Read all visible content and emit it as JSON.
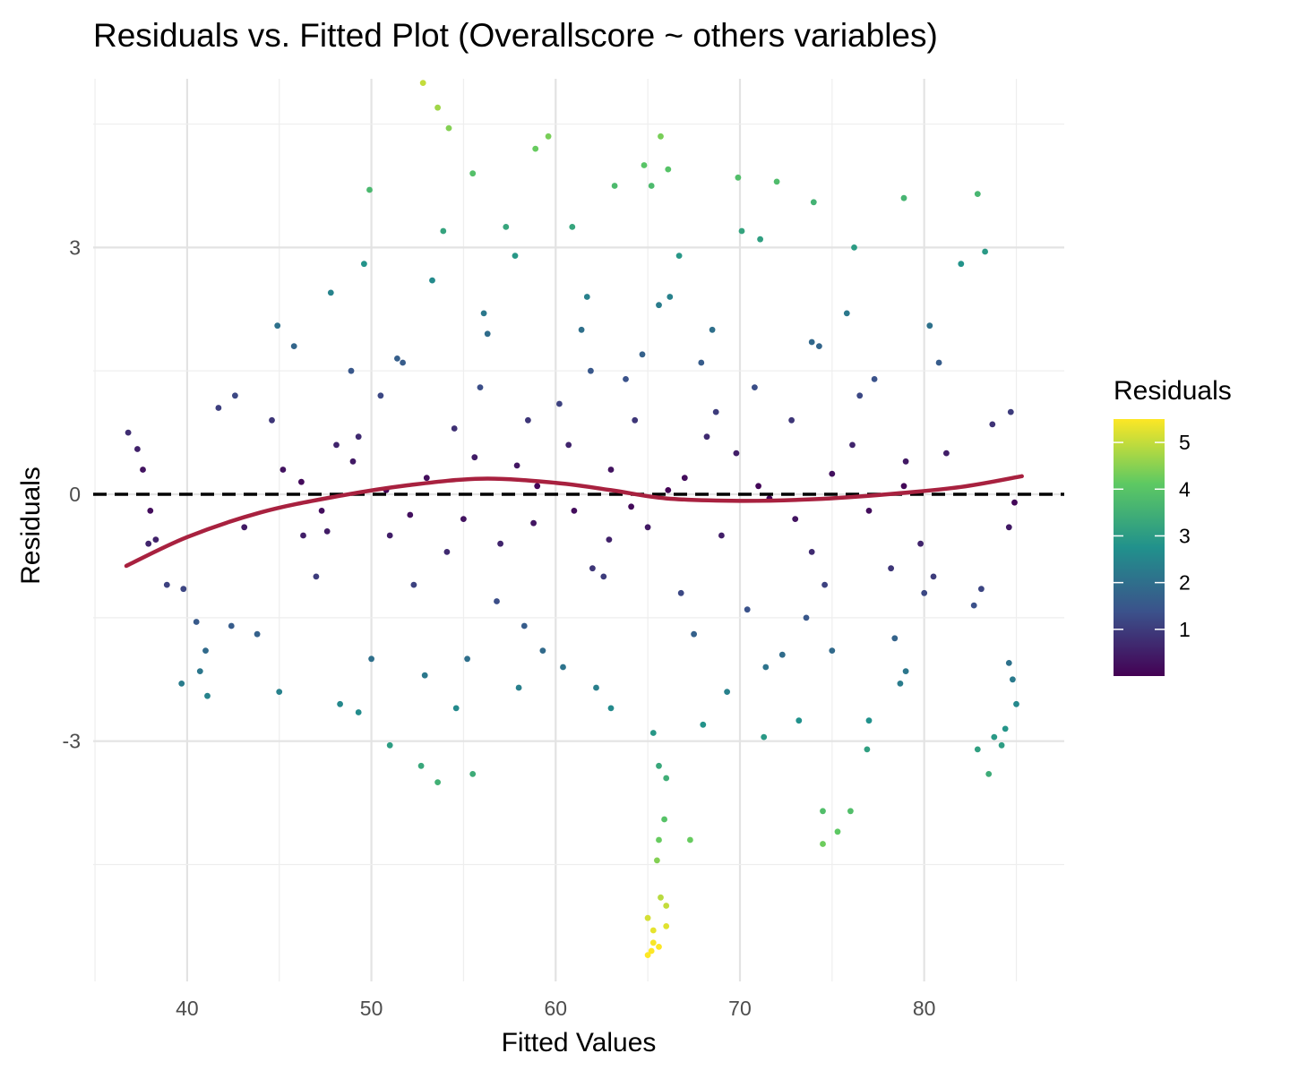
{
  "chart_data": {
    "type": "scatter",
    "title": "Residuals vs. Fitted Plot (Overallscore ~ others variables)",
    "xlabel": "Fitted Values",
    "ylabel": "Residuals",
    "xlim": [
      34.9,
      87.6
    ],
    "ylim": [
      -5.92,
      5.05
    ],
    "x_ticks": [
      40,
      50,
      60,
      70,
      80
    ],
    "x_tick_labels": [
      "40",
      "50",
      "60",
      "70",
      "80"
    ],
    "y_ticks": [
      -3,
      0,
      3
    ],
    "y_tick_labels": [
      "-3",
      "0",
      "3"
    ],
    "grid": true,
    "reference_line": {
      "y": 0,
      "style": "dashed",
      "color": "#000000"
    },
    "smooth": {
      "color": "#a8213f",
      "x": [
        36.7,
        40,
        44,
        48,
        52,
        56,
        60,
        63,
        66,
        70,
        74,
        78,
        82,
        85.3
      ],
      "y": [
        -0.87,
        -0.52,
        -0.22,
        -0.03,
        0.11,
        0.19,
        0.14,
        0.05,
        -0.05,
        -0.08,
        -0.06,
        0.0,
        0.09,
        0.22
      ]
    },
    "color_scale": {
      "name": "Residuals",
      "palette": [
        "#440154",
        "#3b528b",
        "#21918c",
        "#5ec962",
        "#fde725"
      ],
      "range": [
        0,
        5.5
      ],
      "ticks": [
        1,
        2,
        3,
        4,
        5
      ],
      "tick_labels": [
        "1",
        "2",
        "3",
        "4",
        "5"
      ]
    },
    "legend_position": "right",
    "points": [
      [
        52.8,
        5.0
      ],
      [
        53.6,
        4.7
      ],
      [
        54.2,
        4.45
      ],
      [
        58.9,
        4.2
      ],
      [
        59.6,
        4.35
      ],
      [
        65.7,
        4.35
      ],
      [
        66.1,
        3.95
      ],
      [
        64.8,
        4.0
      ],
      [
        72.0,
        3.8
      ],
      [
        69.9,
        3.85
      ],
      [
        55.5,
        3.9
      ],
      [
        49.9,
        3.7
      ],
      [
        74.0,
        3.55
      ],
      [
        78.9,
        3.6
      ],
      [
        82.9,
        3.65
      ],
      [
        63.2,
        3.75
      ],
      [
        65.2,
        3.75
      ],
      [
        57.3,
        3.25
      ],
      [
        60.9,
        3.25
      ],
      [
        53.9,
        3.2
      ],
      [
        76.2,
        3.0
      ],
      [
        83.3,
        2.95
      ],
      [
        71.1,
        3.1
      ],
      [
        66.7,
        2.9
      ],
      [
        82.0,
        2.8
      ],
      [
        47.8,
        2.45
      ],
      [
        61.7,
        2.4
      ],
      [
        65.6,
        2.3
      ],
      [
        80.3,
        2.05
      ],
      [
        68.5,
        2.0
      ],
      [
        44.9,
        2.05
      ],
      [
        56.3,
        1.95
      ],
      [
        73.9,
        1.85
      ],
      [
        45.8,
        1.8
      ],
      [
        64.7,
        1.7
      ],
      [
        51.4,
        1.65
      ],
      [
        41.7,
        1.05
      ],
      [
        42.6,
        1.2
      ],
      [
        83.7,
        0.85
      ],
      [
        84.7,
        1.0
      ],
      [
        36.8,
        0.75
      ],
      [
        37.3,
        0.55
      ],
      [
        37.6,
        0.3
      ],
      [
        38.0,
        -0.2
      ],
      [
        38.3,
        -0.55
      ],
      [
        37.9,
        -0.6
      ],
      [
        38.9,
        -1.1
      ],
      [
        39.8,
        -1.15
      ],
      [
        40.5,
        -1.55
      ],
      [
        41.0,
        -1.9
      ],
      [
        40.7,
        -2.15
      ],
      [
        41.1,
        -2.45
      ],
      [
        39.7,
        -2.3
      ],
      [
        42.4,
        -1.6
      ],
      [
        43.8,
        -1.7
      ],
      [
        45.0,
        -2.4
      ],
      [
        84.6,
        -0.4
      ],
      [
        84.9,
        -0.1
      ],
      [
        83.1,
        -1.15
      ],
      [
        82.7,
        -1.35
      ],
      [
        84.6,
        -2.05
      ],
      [
        84.8,
        -2.25
      ],
      [
        85.0,
        -2.55
      ],
      [
        83.8,
        -2.95
      ],
      [
        84.4,
        -2.85
      ],
      [
        82.9,
        -3.1
      ],
      [
        83.5,
        -3.4
      ],
      [
        84.2,
        -3.05
      ],
      [
        74.5,
        -4.25
      ],
      [
        75.3,
        -4.1
      ],
      [
        74.5,
        -3.85
      ],
      [
        76.0,
        -3.85
      ],
      [
        66.0,
        -3.45
      ],
      [
        65.6,
        -3.3
      ],
      [
        65.9,
        -3.95
      ],
      [
        65.6,
        -4.2
      ],
      [
        65.5,
        -4.45
      ],
      [
        67.3,
        -4.2
      ],
      [
        65.7,
        -4.9
      ],
      [
        66.0,
        -5.0
      ],
      [
        65.0,
        -5.15
      ],
      [
        65.3,
        -5.45
      ],
      [
        65.6,
        -5.5
      ],
      [
        65.2,
        -5.55
      ],
      [
        65.0,
        -5.6
      ],
      [
        66.0,
        -5.25
      ],
      [
        65.3,
        -5.3
      ],
      [
        52.7,
        -3.3
      ],
      [
        53.6,
        -3.5
      ],
      [
        55.5,
        -3.4
      ],
      [
        51.0,
        -3.05
      ],
      [
        49.3,
        -2.65
      ],
      [
        48.3,
        -2.55
      ],
      [
        54.6,
        -2.6
      ],
      [
        58.0,
        -2.35
      ],
      [
        60.4,
        -2.1
      ],
      [
        62.2,
        -2.35
      ],
      [
        63.0,
        -2.6
      ],
      [
        68.0,
        -2.8
      ],
      [
        71.3,
        -2.95
      ],
      [
        73.2,
        -2.75
      ],
      [
        77.0,
        -2.75
      ],
      [
        79.0,
        -2.15
      ],
      [
        78.4,
        -1.75
      ],
      [
        75.0,
        -1.9
      ],
      [
        80.0,
        -1.2
      ],
      [
        80.5,
        -1.0
      ],
      [
        72.3,
        -1.95
      ],
      [
        58.5,
        0.9
      ],
      [
        57.0,
        -0.6
      ],
      [
        62.0,
        -0.9
      ],
      [
        47.3,
        -0.2
      ],
      [
        49.0,
        0.4
      ],
      [
        51.0,
        -0.5
      ],
      [
        53.0,
        0.2
      ],
      [
        55.0,
        -0.3
      ],
      [
        59.0,
        0.1
      ],
      [
        61.0,
        -0.2
      ],
      [
        63.0,
        0.3
      ],
      [
        65.0,
        -0.4
      ],
      [
        67.0,
        0.2
      ],
      [
        69.0,
        -0.5
      ],
      [
        71.0,
        0.1
      ],
      [
        73.0,
        -0.3
      ],
      [
        75.0,
        0.25
      ],
      [
        77.0,
        -0.2
      ],
      [
        79.0,
        0.4
      ],
      [
        50.5,
        1.2
      ],
      [
        52.3,
        -1.1
      ],
      [
        54.5,
        0.8
      ],
      [
        56.8,
        -1.3
      ],
      [
        60.2,
        1.1
      ],
      [
        62.6,
        -1.0
      ],
      [
        64.3,
        0.9
      ],
      [
        66.8,
        -1.2
      ],
      [
        68.7,
        1.0
      ],
      [
        70.4,
        -1.4
      ],
      [
        72.8,
        0.9
      ],
      [
        74.6,
        -1.1
      ],
      [
        76.5,
        1.2
      ],
      [
        78.2,
        -0.9
      ],
      [
        48.1,
        0.6
      ],
      [
        46.3,
        -0.5
      ],
      [
        44.6,
        0.9
      ],
      [
        43.1,
        -0.4
      ],
      [
        45.2,
        0.3
      ],
      [
        47.0,
        -1.0
      ],
      [
        48.9,
        1.5
      ],
      [
        51.7,
        1.6
      ],
      [
        55.9,
        1.3
      ],
      [
        58.3,
        -1.6
      ],
      [
        63.8,
        1.4
      ],
      [
        67.5,
        -1.7
      ],
      [
        70.8,
        1.3
      ],
      [
        73.6,
        -1.5
      ],
      [
        77.3,
        1.4
      ],
      [
        79.8,
        -0.6
      ],
      [
        81.2,
        0.5
      ],
      [
        80.8,
        1.6
      ],
      [
        50.0,
        -2.0
      ],
      [
        52.9,
        -2.2
      ],
      [
        56.1,
        2.2
      ],
      [
        61.4,
        2.0
      ],
      [
        66.2,
        2.4
      ],
      [
        69.3,
        -2.4
      ],
      [
        75.8,
        2.2
      ],
      [
        78.7,
        -2.3
      ],
      [
        49.6,
        2.8
      ],
      [
        53.3,
        2.6
      ],
      [
        57.8,
        2.9
      ],
      [
        65.3,
        -2.9
      ],
      [
        70.1,
        3.2
      ],
      [
        76.9,
        -3.1
      ],
      [
        71.6,
        -0.05
      ],
      [
        69.8,
        0.5
      ],
      [
        64.1,
        -0.15
      ],
      [
        57.9,
        0.35
      ],
      [
        54.1,
        -0.7
      ],
      [
        50.8,
        0.05
      ],
      [
        47.6,
        -0.45
      ],
      [
        46.2,
        0.15
      ],
      [
        76.1,
        0.6
      ],
      [
        78.9,
        0.1
      ],
      [
        73.9,
        -0.7
      ],
      [
        68.2,
        0.7
      ],
      [
        66.1,
        0.05
      ],
      [
        62.9,
        -0.55
      ],
      [
        60.7,
        0.6
      ],
      [
        58.8,
        -0.35
      ],
      [
        55.6,
        0.45
      ],
      [
        52.1,
        -0.25
      ],
      [
        49.3,
        0.7
      ],
      [
        61.9,
        1.5
      ],
      [
        67.9,
        1.6
      ],
      [
        74.3,
        1.8
      ],
      [
        71.4,
        -2.1
      ],
      [
        59.3,
        -1.9
      ],
      [
        55.2,
        -2.0
      ]
    ]
  }
}
